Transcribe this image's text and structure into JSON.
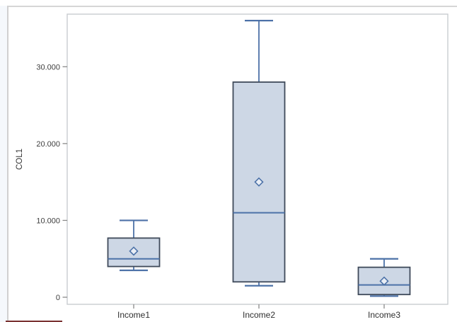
{
  "window": {
    "description": "statistical output panel showing a box plot"
  },
  "chart_data": {
    "type": "boxplot",
    "title": "",
    "xlabel": "",
    "ylabel": "COL1",
    "grid": false,
    "legend": "none",
    "ylim": [
      -900,
      36850
    ],
    "y_ticks": [
      {
        "value": 0,
        "label": "0"
      },
      {
        "value": 10000,
        "label": "10.000"
      },
      {
        "value": 20000,
        "label": "20.000"
      },
      {
        "value": 30000,
        "label": "30.000"
      }
    ],
    "categories": [
      "Income1",
      "Income2",
      "Income3"
    ],
    "series": [
      {
        "category": "Income1",
        "min": 3500,
        "q1": 4000,
        "median": 5000,
        "q3": 7700,
        "max": 10000,
        "mean": 6000
      },
      {
        "category": "Income2",
        "min": 1500,
        "q1": 2000,
        "median": 11000,
        "q3": 28000,
        "max": 36000,
        "mean": 15000
      },
      {
        "category": "Income3",
        "min": 150,
        "q1": 350,
        "median": 1600,
        "q3": 3900,
        "max": 5000,
        "mean": 2100
      }
    ],
    "colors": {
      "box_fill": "#cdd7e5",
      "box_stroke": "#3f4a5a",
      "line_blue": "#4d72a8",
      "diamond_fill": "#e9eef5",
      "frame_gray": "#c9cccf",
      "tick_gray": "#8a8a8a",
      "tick_text": "#3d3d3d",
      "category_text": "#2f2f2f",
      "axis_title_text": "#333333"
    }
  }
}
